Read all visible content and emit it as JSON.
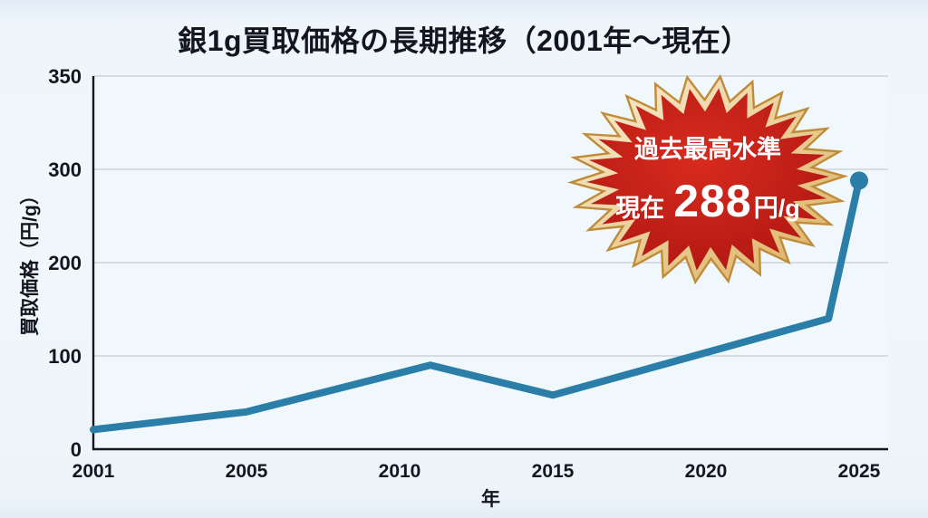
{
  "chart_data": {
    "type": "line",
    "title": "銀1g買取価格の長期推移（2001年〜現在）",
    "xlabel": "年",
    "ylabel": "買取価格（円/g）",
    "x": [
      2001,
      2005,
      2011,
      2015,
      2024,
      2025
    ],
    "values": [
      21,
      40,
      90,
      58,
      140,
      288
    ],
    "xticks": [
      "2001",
      "2005",
      "2010",
      "2015",
      "2020",
      "2025"
    ],
    "xtick_years": [
      2001,
      2005,
      2010,
      2015,
      2020,
      2025
    ],
    "yticks": [
      0,
      100,
      200,
      300,
      350
    ],
    "ylim": [
      0,
      350
    ],
    "grid": true,
    "legend_position": "none",
    "annotation": {
      "line1": "過去最高水準",
      "line2_prefix": "現在",
      "line2_value": "288",
      "line2_suffix": "円/g"
    }
  },
  "colors": {
    "background": "#eef5fb",
    "plot_background": "#f3f9fd",
    "grid": "#c5ccd4",
    "axis": "#16161e",
    "text": "#15151f",
    "line": "#2a7ea7",
    "marker": "#2a7ea7",
    "badge_red_center": "#d92b1e",
    "badge_red_edge": "#a81410",
    "badge_gold_light": "#faf0d6",
    "badge_gold_dark": "#dcae5e",
    "badge_outline": "#bf8c3a",
    "badge_text": "#ffffff"
  }
}
